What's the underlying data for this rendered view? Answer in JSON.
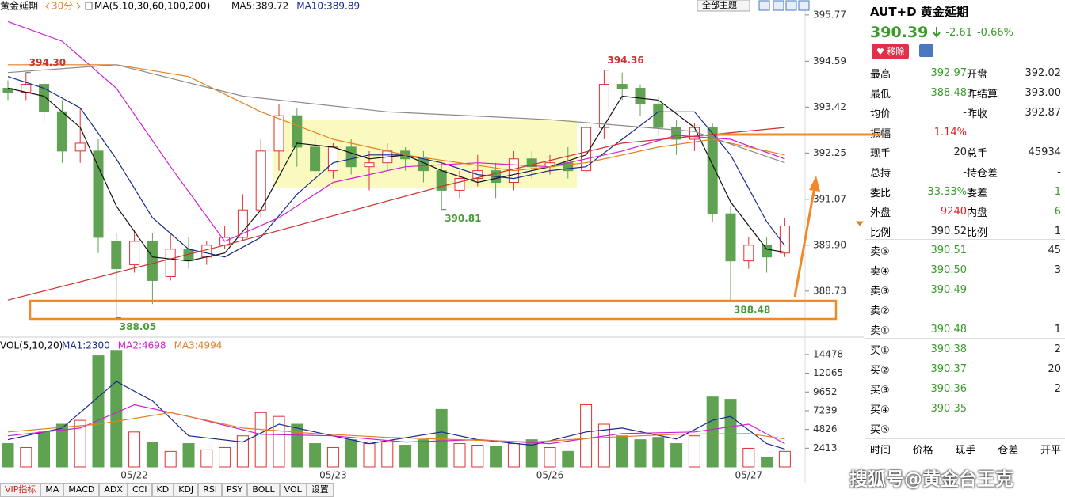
{
  "chart_data": [
    {
      "type": "candlestick",
      "title": "黄金延期",
      "period": "30分",
      "ma_label": "MA(5,10,30,60,100,200)",
      "ma_values": [
        "MA5:389.72",
        "MA10:389.89"
      ],
      "categories": [
        null,
        null,
        null,
        null,
        null,
        null,
        null,
        "05/22",
        null,
        null,
        null,
        null,
        null,
        null,
        null,
        null,
        null,
        null,
        "05/23",
        null,
        null,
        null,
        null,
        null,
        null,
        null,
        null,
        null,
        null,
        null,
        "05/26",
        null,
        null,
        null,
        null,
        null,
        null,
        null,
        null,
        null,
        null,
        "05/27",
        null,
        null
      ],
      "open": [
        393.9,
        393.8,
        394.0,
        393.3,
        392.3,
        392.3,
        390.0,
        389.4,
        390.0,
        389.1,
        389.8,
        389.6,
        389.9,
        390.1,
        390.8,
        392.3,
        393.2,
        392.4,
        391.8,
        392.4,
        391.9,
        392.0,
        392.3,
        392.1,
        391.8,
        391.3,
        391.6,
        391.8,
        391.5,
        392.1,
        391.9,
        392.0,
        391.8,
        392.9,
        394.0,
        393.9,
        393.5,
        392.9,
        392.6,
        392.9,
        390.7,
        389.5,
        389.9,
        389.7
      ],
      "high": [
        394.1,
        394.3,
        394.1,
        393.6,
        393.4,
        392.6,
        390.2,
        390.3,
        390.2,
        390.2,
        390.1,
        390.0,
        390.4,
        391.2,
        392.6,
        393.5,
        393.4,
        392.9,
        392.5,
        392.6,
        392.3,
        392.5,
        392.4,
        392.3,
        392.0,
        391.8,
        392.2,
        392.0,
        392.3,
        392.3,
        392.2,
        392.4,
        393.0,
        394.36,
        394.3,
        394.0,
        393.7,
        393.1,
        393.0,
        393.0,
        390.9,
        390.1,
        390.1,
        390.6
      ],
      "low": [
        393.6,
        393.6,
        393.0,
        392.0,
        392.0,
        389.7,
        388.05,
        389.2,
        388.4,
        389.0,
        389.3,
        389.4,
        389.8,
        390.0,
        390.6,
        391.8,
        391.9,
        391.6,
        391.6,
        391.7,
        391.3,
        391.8,
        391.8,
        391.5,
        390.81,
        391.1,
        391.4,
        391.1,
        391.3,
        391.6,
        391.7,
        391.6,
        391.7,
        392.6,
        393.6,
        393.2,
        392.7,
        392.2,
        392.3,
        390.5,
        388.48,
        389.3,
        389.2,
        389.6
      ],
      "close": [
        393.8,
        394.0,
        393.3,
        392.3,
        392.5,
        390.1,
        389.3,
        390.0,
        389.0,
        389.8,
        389.5,
        389.9,
        390.1,
        390.8,
        392.3,
        393.2,
        392.4,
        391.8,
        392.4,
        391.9,
        392.0,
        392.3,
        392.1,
        391.8,
        391.3,
        391.6,
        391.8,
        391.5,
        392.1,
        391.9,
        392.0,
        391.8,
        392.9,
        394.0,
        393.9,
        393.5,
        392.9,
        392.6,
        392.9,
        390.7,
        389.5,
        389.9,
        389.6,
        390.39
      ],
      "up_color": "#e03030",
      "down_color": "#5fa252",
      "ylim": [
        387.98,
        396.15
      ],
      "yticks": [
        395.77,
        394.59,
        393.42,
        392.25,
        391.07,
        {
          "value": 389.9,
          "label": "389.90"
        },
        388.73
      ],
      "ma": [
        {
          "color": "#111111",
          "x": [
            0,
            2,
            4,
            6,
            8,
            10,
            12,
            14,
            16,
            18,
            20,
            22,
            24,
            26,
            28,
            30,
            32,
            34,
            36,
            38,
            40,
            42,
            43
          ],
          "values": [
            393.9,
            393.7,
            392.9,
            390.9,
            389.6,
            389.5,
            389.7,
            390.8,
            392.5,
            392.4,
            392.1,
            392.2,
            391.8,
            391.5,
            391.7,
            391.9,
            392.2,
            393.7,
            393.6,
            392.9,
            391.0,
            389.8,
            389.72
          ]
        },
        {
          "color": "#1a2a8a",
          "x": [
            0,
            2,
            4,
            6,
            8,
            10,
            12,
            14,
            16,
            18,
            20,
            22,
            24,
            26,
            28,
            30,
            32,
            34,
            36,
            38,
            40,
            42,
            43
          ],
          "values": [
            394.2,
            393.9,
            393.4,
            392.1,
            390.6,
            389.8,
            389.6,
            390.1,
            391.2,
            392.0,
            392.2,
            392.2,
            392.0,
            391.7,
            391.6,
            391.8,
            391.9,
            392.6,
            393.3,
            393.3,
            392.2,
            390.5,
            389.89
          ]
        },
        {
          "color": "#d020d0",
          "x": [
            0,
            3,
            6,
            9,
            12,
            15,
            18,
            22,
            26,
            30,
            34,
            37,
            40,
            43
          ],
          "values": [
            395.6,
            395.1,
            393.9,
            391.9,
            390.0,
            390.6,
            391.5,
            391.9,
            392.0,
            391.9,
            392.3,
            392.7,
            392.6,
            392.1
          ]
        },
        {
          "color": "#e08020",
          "x": [
            0,
            6,
            10,
            14,
            18,
            22,
            28,
            32,
            36,
            39,
            43
          ],
          "values": [
            394.5,
            394.5,
            394.2,
            393.3,
            392.6,
            392.2,
            391.8,
            392.0,
            392.4,
            392.6,
            392.2
          ]
        },
        {
          "color": "#8a8a8a",
          "x": [
            0,
            6,
            13,
            21,
            30,
            38,
            43
          ],
          "values": [
            394.3,
            394.5,
            393.7,
            393.3,
            393.1,
            392.8,
            392.0
          ]
        },
        {
          "color": "#d03030",
          "x": [
            0,
            12,
            24,
            34,
            43
          ],
          "values": [
            388.5,
            389.9,
            391.4,
            392.5,
            392.9
          ]
        }
      ],
      "annotations": [
        {
          "x": 1,
          "value": 394.3,
          "label": "394.30",
          "color": "#d03030"
        },
        {
          "x": 33,
          "value": 394.36,
          "label": "394.36",
          "color": "#d03030"
        },
        {
          "x": 24,
          "value": 390.81,
          "label": "390.81",
          "color": "#4a9a3a"
        },
        {
          "x": 40,
          "value": 388.48,
          "label": "388.48",
          "color": "#4a9a3a"
        },
        {
          "x": 6,
          "value": 388.05,
          "label": "388.05",
          "color": "#4a9a3a"
        }
      ]
    },
    {
      "type": "bar",
      "title": "VOL(5,10,20)",
      "ma_values": [
        "MA1:2300",
        "MA2:4698",
        "MA3:4994"
      ],
      "values": [
        3000,
        2500,
        4500,
        5500,
        6000,
        14300,
        15000,
        4500,
        3200,
        2000,
        3000,
        2200,
        2500,
        4000,
        7000,
        6500,
        5500,
        3000,
        2500,
        3500,
        3000,
        3200,
        2800,
        3500,
        7400,
        3000,
        2800,
        2600,
        3000,
        3500,
        2500,
        2000,
        8000,
        5500,
        4000,
        3500,
        3800,
        3000,
        4000,
        9000,
        8700,
        2400,
        1200,
        2000
      ],
      "ylim": [
        0,
        16300
      ],
      "yticks": [
        14478,
        12065,
        9652,
        7239,
        4826,
        2413
      ],
      "ma": [
        {
          "color": "#1a2a8a",
          "x": [
            0,
            3,
            5,
            6,
            8,
            10,
            13,
            15,
            17,
            20,
            24,
            26,
            29,
            32,
            34,
            37,
            39,
            40,
            42,
            43
          ],
          "values": [
            3500,
            5000,
            9000,
            11000,
            8500,
            4000,
            3200,
            5500,
            4500,
            3000,
            4500,
            3500,
            2800,
            4500,
            5000,
            3600,
            6000,
            6500,
            3000,
            2300
          ]
        },
        {
          "color": "#d020d0",
          "x": [
            0,
            4,
            7,
            10,
            14,
            18,
            22,
            26,
            30,
            34,
            38,
            41,
            43
          ],
          "values": [
            4000,
            5000,
            8000,
            6500,
            4200,
            4000,
            3200,
            3500,
            3000,
            4300,
            4500,
            5500,
            3000
          ]
        },
        {
          "color": "#e08020",
          "x": [
            0,
            5,
            9,
            13,
            17,
            21,
            25,
            29,
            33,
            37,
            41,
            43
          ],
          "values": [
            4500,
            5500,
            7000,
            5000,
            4300,
            3800,
            3500,
            3200,
            3800,
            4200,
            4300,
            3600
          ]
        }
      ]
    }
  ],
  "toolbar": {
    "theme": "全部主题"
  },
  "tabs": [
    "VIP指标",
    "MA",
    "MACD",
    "ADX",
    "CCI",
    "KD",
    "KDJ",
    "RSI",
    "PSY",
    "BOLL",
    "VOL",
    "设置"
  ],
  "quote": {
    "code": "AUT+D",
    "name": "黄金延期",
    "price": "390.39",
    "change": "-2.61",
    "pct": "-0.66%",
    "remove": "移除",
    "stats": [
      [
        "最高",
        "392.97",
        "开盘",
        "392.02"
      ],
      [
        "最低",
        "388.48",
        "昨结算",
        "393.00"
      ],
      [
        "均价",
        "-",
        "昨收",
        "392.87"
      ],
      [
        "振幅",
        "1.14%"
      ],
      [
        "现手",
        "20",
        "总手",
        "45934"
      ],
      [
        "总持",
        "-",
        "持仓差",
        "-"
      ],
      [
        "委比",
        "33.33%",
        "委差",
        "-1"
      ],
      [
        "外盘",
        "9240",
        "内盘",
        "6"
      ],
      [
        "比例",
        "390.52",
        "比例",
        "1"
      ]
    ],
    "book": [
      [
        "卖⑤",
        "390.51",
        "45"
      ],
      [
        "卖④",
        "390.50",
        "3"
      ],
      [
        "卖③",
        "390.49"
      ],
      [
        "卖②"
      ],
      [
        "卖①",
        "390.48",
        "1"
      ],
      [
        "买①",
        "390.38",
        "2"
      ],
      [
        "买②",
        "390.37",
        "20"
      ],
      [
        "买③",
        "390.36",
        "2"
      ],
      [
        "买④",
        "390.35"
      ],
      [
        "买⑤"
      ]
    ],
    "trades_header": [
      "时间",
      "价格",
      "现手",
      "仓差",
      "开平"
    ]
  },
  "watermark": "搜狐号@黄金台王克"
}
